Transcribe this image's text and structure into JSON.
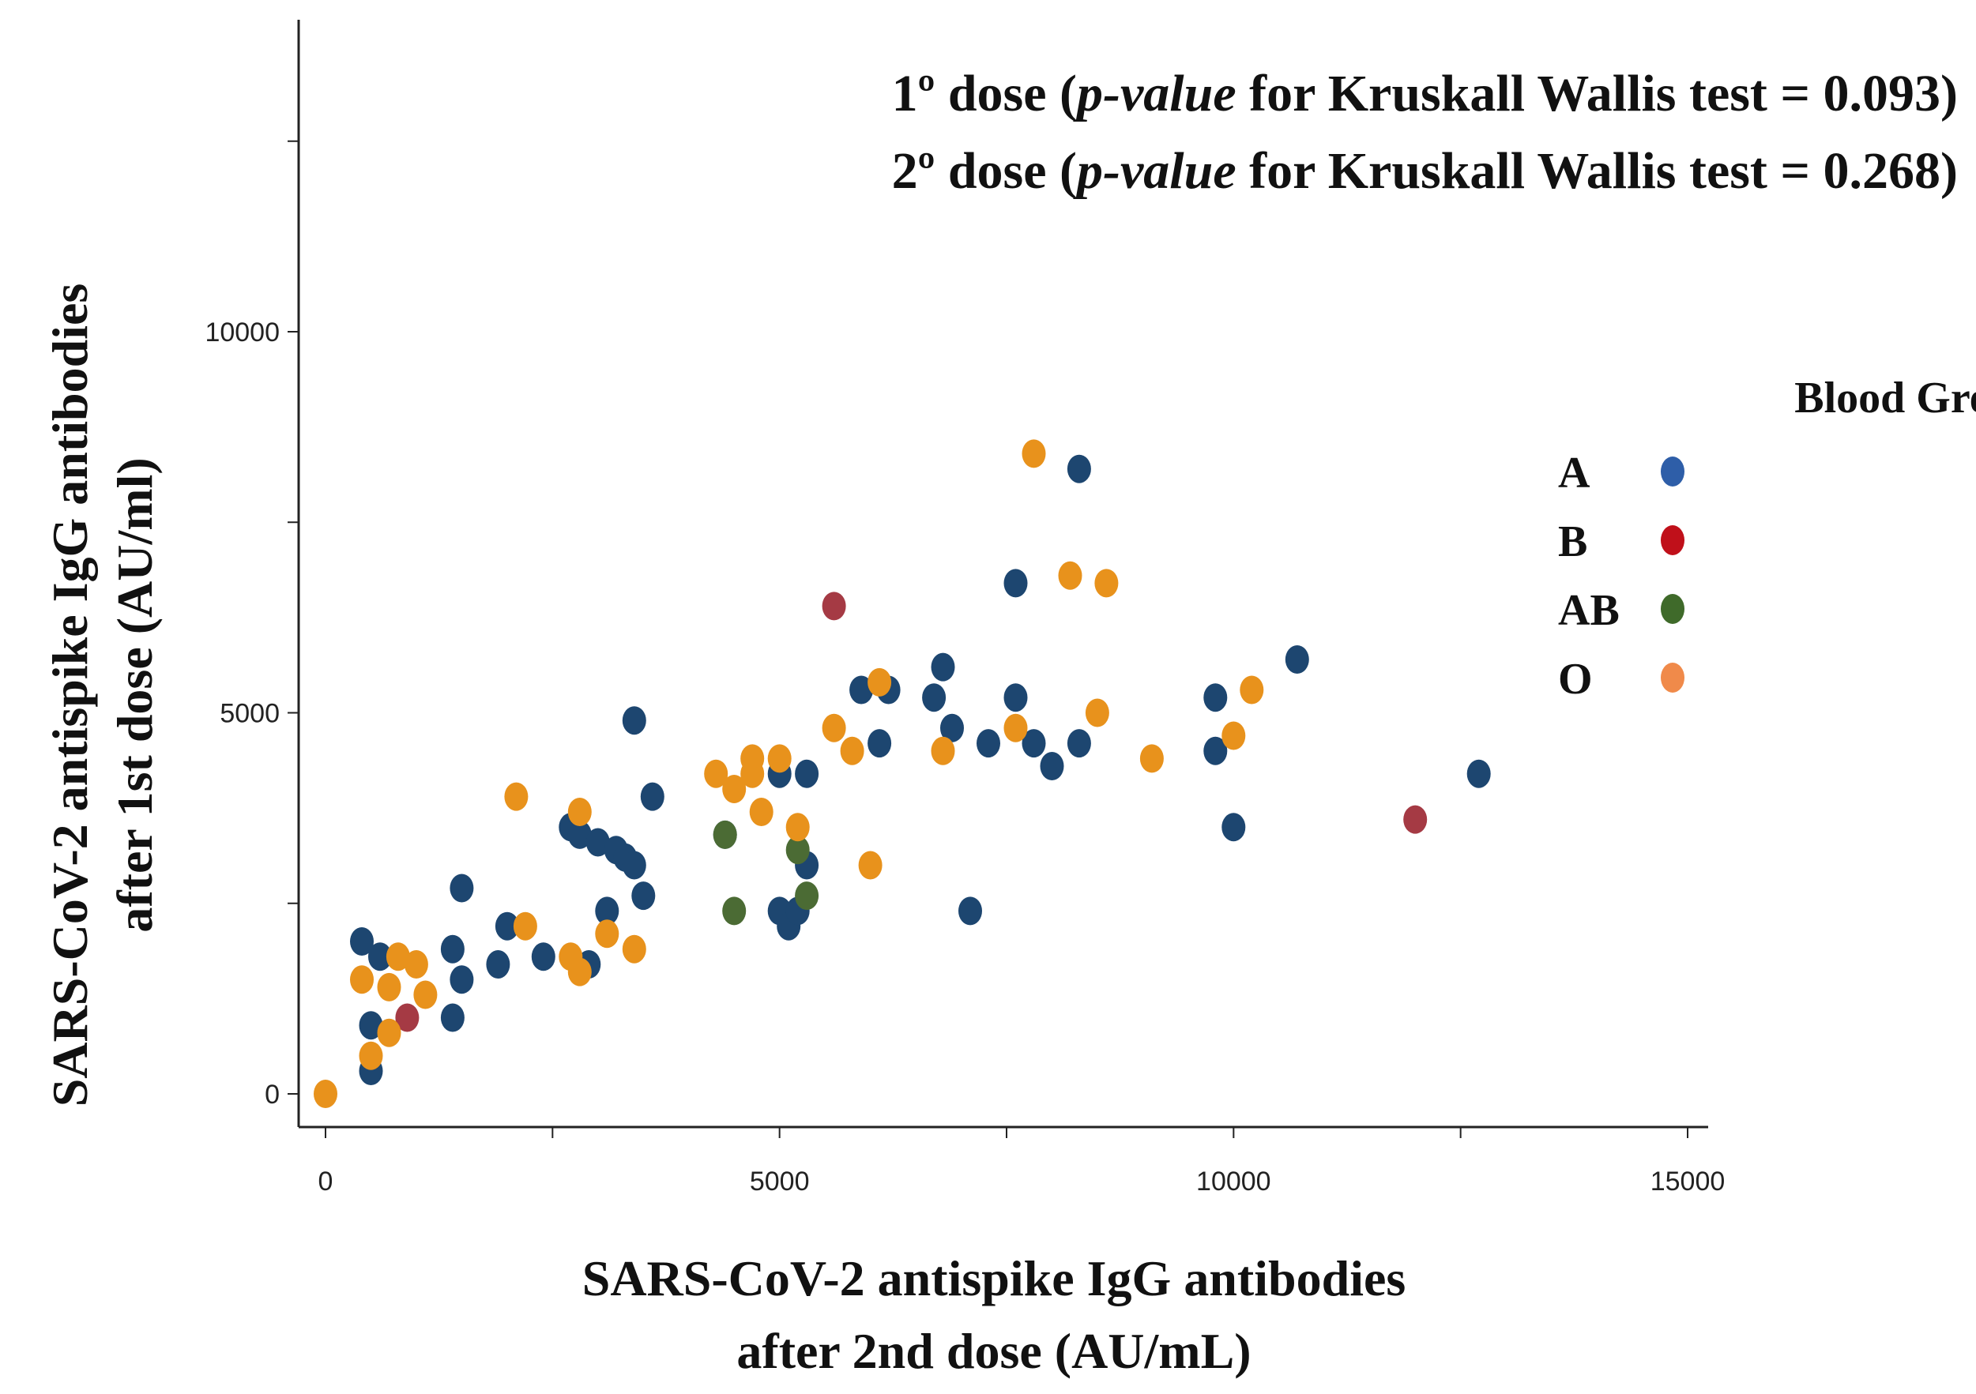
{
  "chart_data": {
    "type": "scatter",
    "title_lines": [
      {
        "pre": "1º dose (",
        "italic": "p-value",
        "post": " for Kruskall Wallis test = 0.093)"
      },
      {
        "pre": "2º dose (",
        "italic": "p-value",
        "post": " for Kruskall Wallis test = 0.268)"
      }
    ],
    "xlabel_lines": [
      "SARS-CoV-2 antispike IgG antibodies",
      "after 2nd dose  (AU/mL)"
    ],
    "ylabel_lines": [
      "SARS-CoV-2 antispike IgG antibodies",
      "after 1st dose (AU/ml)"
    ],
    "xlim": [
      -300,
      15300
    ],
    "ylim": [
      -500,
      14200
    ],
    "xticks": [
      0,
      2500,
      5000,
      7500,
      10000,
      12500,
      15000
    ],
    "xtick_labels": [
      "0",
      "",
      "5000",
      "",
      "10000",
      "",
      "15000"
    ],
    "yticks": [
      0,
      2500,
      5000,
      7500,
      10000,
      12500
    ],
    "ytick_labels": [
      "0",
      "",
      "5000",
      "",
      "10000",
      ""
    ],
    "legend": {
      "title": "Blood Groups",
      "position": "right",
      "entries": [
        {
          "label": "A",
          "color": "#2e5ea8"
        },
        {
          "label": "B",
          "color": "#c0101a"
        },
        {
          "label": "AB",
          "color": "#3f6a2a"
        },
        {
          "label": "O",
          "color": "#f08a4a"
        }
      ]
    },
    "series": [
      {
        "name": "A",
        "color": "#1d4670",
        "points": [
          [
            400,
            2000
          ],
          [
            600,
            1800
          ],
          [
            500,
            900
          ],
          [
            500,
            300
          ],
          [
            1400,
            1900
          ],
          [
            1400,
            1000
          ],
          [
            1500,
            1500
          ],
          [
            1500,
            2700
          ],
          [
            1900,
            1700
          ],
          [
            2000,
            2200
          ],
          [
            2400,
            1800
          ],
          [
            2700,
            3500
          ],
          [
            2800,
            3400
          ],
          [
            2900,
            1700
          ],
          [
            3000,
            3300
          ],
          [
            3100,
            2400
          ],
          [
            3200,
            3200
          ],
          [
            3300,
            3100
          ],
          [
            3400,
            3000
          ],
          [
            3400,
            4900
          ],
          [
            3500,
            2600
          ],
          [
            3600,
            3900
          ],
          [
            4400,
            3400
          ],
          [
            5000,
            4200
          ],
          [
            5000,
            2400
          ],
          [
            5100,
            2200
          ],
          [
            5200,
            2400
          ],
          [
            5300,
            4200
          ],
          [
            5300,
            3000
          ],
          [
            5900,
            5300
          ],
          [
            6100,
            4600
          ],
          [
            6200,
            5300
          ],
          [
            6700,
            5200
          ],
          [
            6800,
            5600
          ],
          [
            6900,
            4800
          ],
          [
            7100,
            2400
          ],
          [
            7300,
            4600
          ],
          [
            7600,
            5200
          ],
          [
            7600,
            6700
          ],
          [
            7800,
            4600
          ],
          [
            8000,
            4300
          ],
          [
            8300,
            4600
          ],
          [
            8300,
            8200
          ],
          [
            9800,
            5200
          ],
          [
            9800,
            4500
          ],
          [
            10000,
            3500
          ],
          [
            10700,
            5700
          ],
          [
            12700,
            4200
          ]
        ]
      },
      {
        "name": "B",
        "color": "#a53a44",
        "points": [
          [
            900,
            1000
          ],
          [
            5600,
            6400
          ],
          [
            12000,
            3600
          ]
        ]
      },
      {
        "name": "AB",
        "color": "#4b6b34",
        "points": [
          [
            4400,
            3400
          ],
          [
            4500,
            2400
          ],
          [
            5200,
            3200
          ],
          [
            5300,
            2600
          ]
        ]
      },
      {
        "name": "O",
        "color": "#e8921c",
        "points": [
          [
            0,
            0
          ],
          [
            400,
            1500
          ],
          [
            500,
            500
          ],
          [
            700,
            800
          ],
          [
            700,
            1400
          ],
          [
            800,
            1800
          ],
          [
            1000,
            1700
          ],
          [
            1100,
            1300
          ],
          [
            2100,
            3900
          ],
          [
            2200,
            2200
          ],
          [
            2700,
            1800
          ],
          [
            2800,
            1600
          ],
          [
            2800,
            3700
          ],
          [
            3100,
            2100
          ],
          [
            3400,
            1900
          ],
          [
            4300,
            4200
          ],
          [
            4500,
            4000
          ],
          [
            4700,
            4400
          ],
          [
            4700,
            4200
          ],
          [
            4800,
            3700
          ],
          [
            5000,
            4400
          ],
          [
            5200,
            3500
          ],
          [
            5600,
            4800
          ],
          [
            5800,
            4500
          ],
          [
            6000,
            3000
          ],
          [
            6100,
            5400
          ],
          [
            6800,
            4500
          ],
          [
            7600,
            4800
          ],
          [
            7800,
            8400
          ],
          [
            8200,
            6800
          ],
          [
            8500,
            5000
          ],
          [
            8600,
            6700
          ],
          [
            9100,
            4400
          ],
          [
            10000,
            4700
          ],
          [
            10200,
            5300
          ]
        ]
      }
    ]
  }
}
